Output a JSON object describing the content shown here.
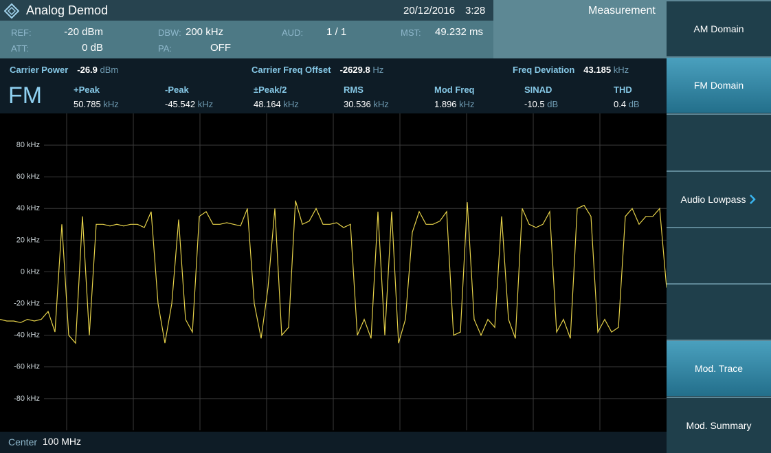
{
  "header": {
    "app": "Analog Demod",
    "date": "20/12/2016",
    "time": "3:28",
    "mode": "Measurement"
  },
  "settings": [
    {
      "label": "REF:",
      "value": "-20 dBm"
    },
    {
      "label": "ATT:",
      "value": "0 dB"
    },
    {
      "label": "DBW:",
      "value": "200 kHz"
    },
    {
      "label": "PA:",
      "value": "OFF"
    },
    {
      "label": "AUD:",
      "value": "1 / 1"
    },
    {
      "label": "MST:",
      "value": "49.232 ms"
    }
  ],
  "summary": [
    {
      "label": "Carrier Power",
      "value": -26.9,
      "unit": "dBm"
    },
    {
      "label": "Carrier Freq Offset",
      "value": -2629.8,
      "unit": "Hz"
    },
    {
      "label": "Freq Deviation",
      "value": 43.185,
      "unit": "kHz"
    }
  ],
  "demod": "FM",
  "results": [
    {
      "label": "+Peak",
      "value": 50.785,
      "unit": "kHz"
    },
    {
      "label": "-Peak",
      "value": -45.542,
      "unit": "kHz"
    },
    {
      "label": "±Peak/2",
      "value": 48.164,
      "unit": "kHz"
    },
    {
      "label": "RMS",
      "value": 30.536,
      "unit": "kHz"
    },
    {
      "label": "Mod Freq",
      "value": 1.896,
      "unit": "kHz"
    },
    {
      "label": "SINAD",
      "value": -10.5,
      "unit": "dB"
    },
    {
      "label": "THD",
      "value": 0.4,
      "unit": "dB"
    }
  ],
  "chart_data": {
    "type": "line",
    "color": "#e6d24a",
    "ylim": [
      -100,
      100
    ],
    "yticks": [
      {
        "value": 80,
        "label": "80 kHz"
      },
      {
        "value": 60,
        "label": "60 kHz"
      },
      {
        "value": 40,
        "label": "40 kHz"
      },
      {
        "value": 20,
        "label": "20 kHz"
      },
      {
        "value": 0,
        "label": "0 kHz"
      },
      {
        "value": -20,
        "label": "-20 kHz"
      },
      {
        "value": -40,
        "label": "-40 kHz"
      },
      {
        "value": -60,
        "label": "-60 kHz"
      },
      {
        "value": -80,
        "label": "-80 kHz"
      }
    ],
    "grid": true,
    "values": [
      -30,
      -31,
      -31,
      -32,
      -30,
      -31,
      -30,
      -25,
      -38,
      30,
      -40,
      -45,
      35,
      -40,
      30,
      30,
      29,
      30,
      29,
      30,
      30,
      28,
      38,
      -20,
      -45,
      -20,
      33,
      -30,
      -38,
      35,
      38,
      30,
      30,
      31,
      30,
      29,
      40,
      -20,
      -42,
      -10,
      40,
      -40,
      -35,
      45,
      30,
      32,
      40,
      30,
      30,
      31,
      28,
      30,
      -40,
      -30,
      -42,
      38,
      -40,
      38,
      -45,
      -30,
      25,
      38,
      30,
      30,
      32,
      38,
      -40,
      -38,
      44,
      -30,
      -40,
      -30,
      -35,
      35,
      -30,
      -42,
      40,
      30,
      28,
      30,
      38,
      -38,
      -30,
      -42,
      40,
      42,
      35,
      -38,
      -30,
      -38,
      -35,
      35,
      40,
      30,
      35,
      35,
      40,
      -10
    ]
  },
  "footer": {
    "label": "Center",
    "value": "100 MHz"
  },
  "softkeys": [
    {
      "label": "AM Domain",
      "active": false
    },
    {
      "label": "FM Domain",
      "active": true
    },
    {
      "label": "Audio Lowpass",
      "active": false
    },
    {
      "label": "Mod. Trace",
      "active": true
    },
    {
      "label": "Mod. Summary",
      "active": false
    }
  ]
}
